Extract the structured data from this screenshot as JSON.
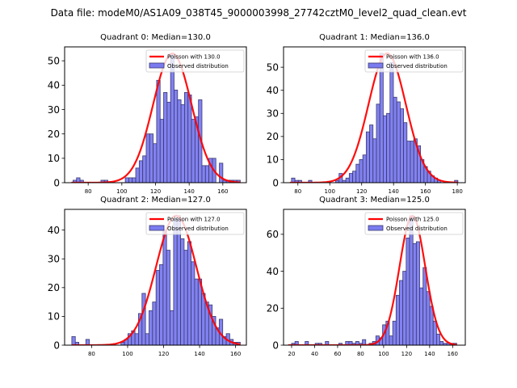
{
  "figure": {
    "suptitle": "Data file: modeM0/AS1A09_038T45_9000003998_27742cztM0_level2_quad_clean.evt"
  },
  "colors": {
    "bar_fill": "#7b7bf0",
    "bar_edge": "#3a3a70",
    "poisson_line": "#ff0000"
  },
  "chart_data": [
    {
      "type": "bar",
      "title": "Quadrant 0: Median=130.0",
      "legend": [
        "Poisson with 130.0",
        "Observed distribution"
      ],
      "legend_position": "top-right",
      "median": 130.0,
      "bin_start": 71,
      "bin_width": 2.07,
      "values": [
        1,
        2,
        1,
        0,
        0,
        0,
        0,
        0,
        1,
        1,
        0,
        0,
        0,
        0,
        0,
        2,
        2,
        2,
        6,
        9,
        11,
        20,
        20,
        16,
        42,
        26,
        37,
        33,
        53,
        38,
        34,
        32,
        37,
        36,
        26,
        27,
        34,
        7,
        7,
        10,
        10,
        0,
        8,
        1,
        1,
        1,
        1,
        1
      ],
      "xlim": [
        66,
        174
      ],
      "ylim": [
        0,
        55.7
      ],
      "xticks": [
        80,
        100,
        120,
        140,
        160
      ],
      "yticks": [
        0,
        10,
        20,
        30,
        40,
        50
      ],
      "curve_peak": 53,
      "curve_sigma": 11.4
    },
    {
      "type": "bar",
      "title": "Quadrant 1: Median=136.0",
      "legend": [
        "Poisson with 136.0",
        "Observed distribution"
      ],
      "legend_position": "top-right",
      "median": 136.0,
      "bin_start": 76,
      "bin_width": 2.13,
      "values": [
        2,
        1,
        1,
        0,
        0,
        1,
        0,
        0,
        0,
        0,
        0,
        0,
        0,
        1,
        4,
        1,
        2,
        4,
        5,
        8,
        10,
        12,
        22,
        25,
        19,
        34,
        56,
        29,
        30,
        52,
        37,
        35,
        32,
        26,
        18,
        18,
        19,
        16,
        10,
        7,
        5,
        3,
        2,
        1,
        0,
        0,
        0,
        0,
        1
      ],
      "xlim": [
        71,
        185
      ],
      "ylim": [
        0,
        58.8
      ],
      "xticks": [
        80,
        100,
        120,
        140,
        160,
        180
      ],
      "yticks": [
        0,
        10,
        20,
        30,
        40,
        50
      ],
      "curve_peak": 56,
      "curve_sigma": 11.7
    },
    {
      "type": "bar",
      "title": "Quadrant 2: Median=127.0",
      "legend": [
        "Poisson with 127.0",
        "Observed distribution"
      ],
      "legend_position": "top-right",
      "median": 127.0,
      "bin_start": 69,
      "bin_width": 1.95,
      "values": [
        3,
        1,
        0,
        0,
        2,
        0,
        0,
        0,
        0,
        0,
        0,
        0,
        0,
        0,
        1,
        2,
        4,
        5,
        4,
        11,
        18,
        4,
        12,
        15,
        26,
        28,
        40,
        33,
        12,
        44,
        45,
        37,
        33,
        36,
        29,
        23,
        23,
        18,
        15,
        14,
        10,
        6,
        9,
        3,
        4,
        2,
        1,
        1
      ],
      "xlim": [
        65,
        166
      ],
      "ylim": [
        0,
        47.2
      ],
      "xticks": [
        80,
        100,
        120,
        140,
        160
      ],
      "yticks": [
        0,
        10,
        20,
        30,
        40
      ],
      "curve_peak": 45,
      "curve_sigma": 11.2
    },
    {
      "type": "bar",
      "title": "Quadrant 3: Median=125.0",
      "legend": [
        "Poisson with 125.0",
        "Observed distribution"
      ],
      "legend_position": "top-right",
      "median": 125.0,
      "bin_start": 20,
      "bin_width": 2.93,
      "values": [
        1,
        2,
        0,
        0,
        2,
        0,
        0,
        1,
        1,
        0,
        2,
        0,
        0,
        0,
        1,
        0,
        2,
        2,
        1,
        2,
        1,
        3,
        0,
        1,
        2,
        5,
        4,
        11,
        13,
        5,
        13,
        27,
        35,
        40,
        58,
        70,
        55,
        56,
        31,
        42,
        29,
        21,
        13,
        6,
        2,
        1,
        1,
        1,
        1
      ],
      "xlim": [
        13,
        171
      ],
      "ylim": [
        0,
        73.5
      ],
      "xticks": [
        20,
        40,
        60,
        80,
        100,
        120,
        140,
        160
      ],
      "yticks": [
        0,
        20,
        40,
        60
      ],
      "curve_peak": 70,
      "curve_sigma": 11.2
    }
  ]
}
